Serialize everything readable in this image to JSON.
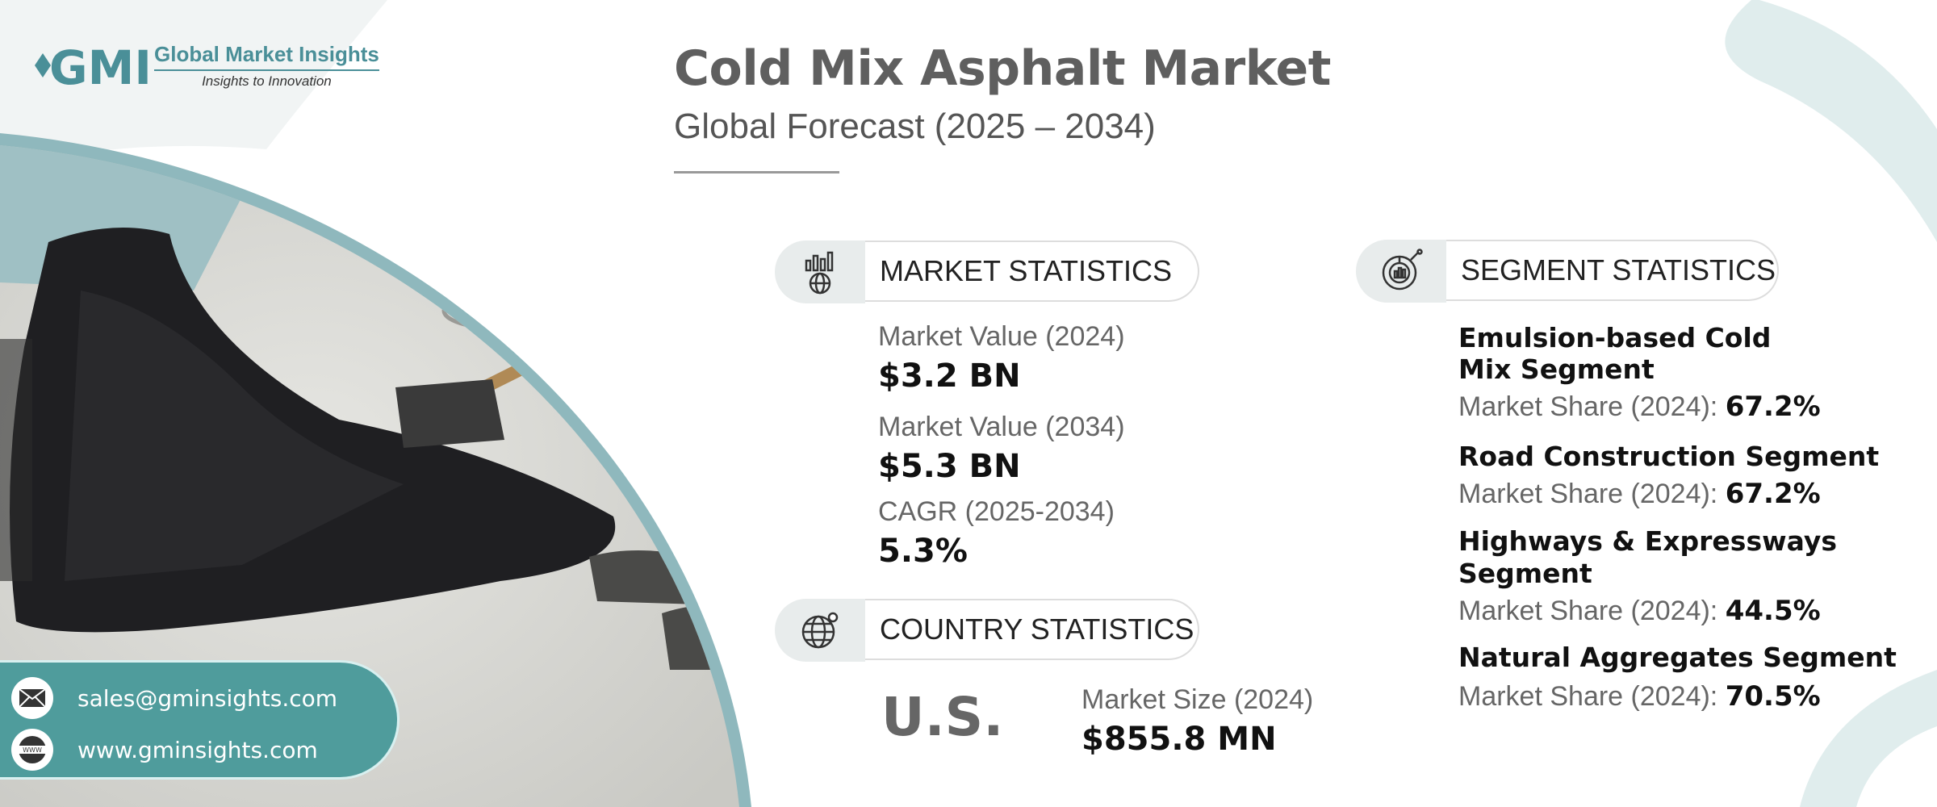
{
  "brand": {
    "name": "Global Market Insights",
    "tagline": "Insights to Innovation",
    "logo_mark": "GMI"
  },
  "header": {
    "title": "Cold Mix Asphalt Market",
    "subtitle": "Global Forecast (2025 – 2034)"
  },
  "market_statistics": {
    "heading": "MARKET STATISTICS",
    "icon": "chart-globe-icon",
    "items": [
      {
        "label": "Market Value (2024)",
        "value": "$3.2 BN"
      },
      {
        "label": "Market Value (2034)",
        "value": "$5.3 BN"
      },
      {
        "label": "CAGR (2025-2034)",
        "value": "5.3%"
      }
    ]
  },
  "country_statistics": {
    "heading": "COUNTRY STATISTICS",
    "icon": "globe-pin-icon",
    "country": "U.S.",
    "label": "Market Size (2024)",
    "value": "$855.8 MN"
  },
  "segment_statistics": {
    "heading": "SEGMENT STATISTICS",
    "icon": "pie-chart-icon",
    "items": [
      {
        "name_lines": [
          "Emulsion-based Cold",
          "Mix Segment"
        ],
        "share_label": "Market Share (2024):",
        "share_value": "67.2%"
      },
      {
        "name_lines": [
          "Road Construction Segment"
        ],
        "share_label": "Market Share (2024):",
        "share_value": "67.2%"
      },
      {
        "name_lines": [
          "Highways & Expressways",
          "Segment"
        ],
        "share_label": "Market Share (2024):",
        "share_value": "44.5%"
      },
      {
        "name_lines": [
          "Natural Aggregates Segment"
        ],
        "share_label": "Market Share (2024):",
        "share_value": "70.5%"
      }
    ]
  },
  "contact": {
    "email": "sales@gminsights.com",
    "website": "www.gminsights.com"
  },
  "colors": {
    "accent": "#4f9c9c",
    "title": "#5f5f5f",
    "label": "#666666",
    "value": "#111111"
  }
}
